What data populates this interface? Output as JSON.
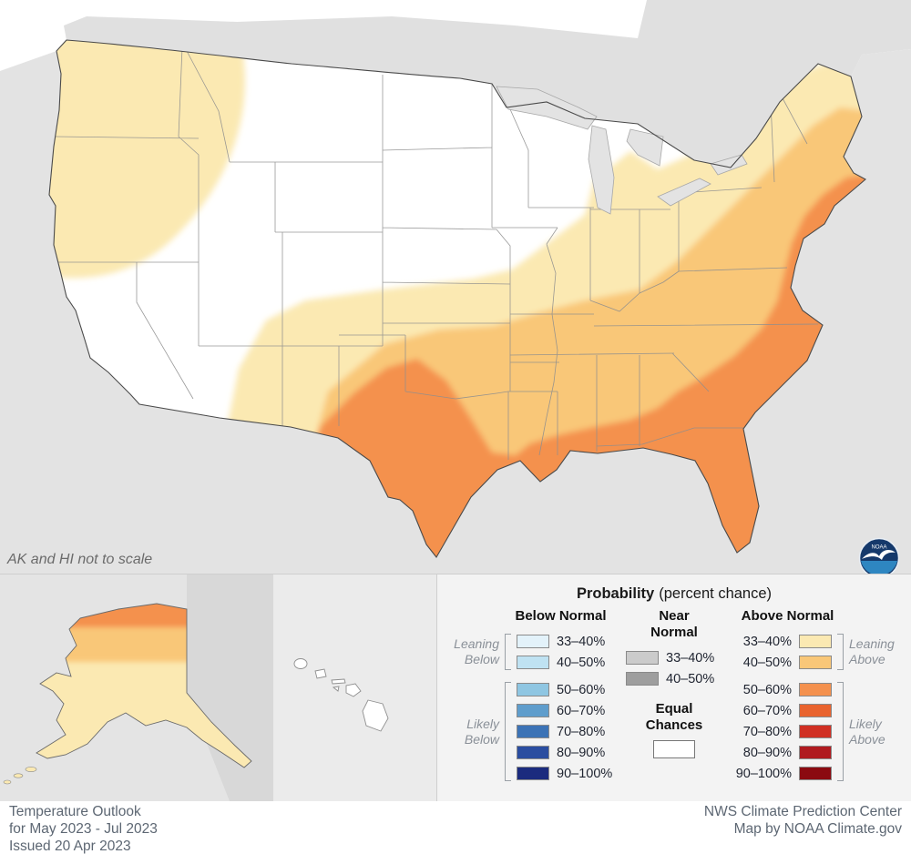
{
  "note": "AK and HI not to scale",
  "colors": {
    "above_33_40": "#FBE9B2",
    "above_40_50": "#F9C778",
    "above_50_60": "#F4914E",
    "above_60_70": "#E9632E",
    "above_70_80": "#D02F23",
    "above_80_90": "#B01A1F",
    "above_90_100": "#8B0A10",
    "below_33_40": "#E3F2FA",
    "below_40_50": "#BFE2F2",
    "below_50_60": "#8FC6E2",
    "below_60_70": "#5F9DCC",
    "below_70_80": "#3C73B6",
    "below_80_90": "#2A4DA0",
    "below_90_100": "#1B2B7E",
    "near_33_40": "#CBCBCB",
    "near_40_50": "#9E9E9E",
    "equal_chances": "#FFFFFF"
  },
  "legend": {
    "title": "Probability",
    "title_suffix": "(percent chance)",
    "below": {
      "header": "Below Normal",
      "leaning_label": "Leaning\nBelow",
      "likely_label": "Likely\nBelow",
      "leaning_rows": [
        {
          "label": "33–40%",
          "color": "#E3F2FA"
        },
        {
          "label": "40–50%",
          "color": "#BFE2F2"
        }
      ],
      "likely_rows": [
        {
          "label": "50–60%",
          "color": "#8FC6E2"
        },
        {
          "label": "60–70%",
          "color": "#5F9DCC"
        },
        {
          "label": "70–80%",
          "color": "#3C73B6"
        },
        {
          "label": "80–90%",
          "color": "#2A4DA0"
        },
        {
          "label": "90–100%",
          "color": "#1B2B7E"
        }
      ]
    },
    "near": {
      "header": "Near\nNormal",
      "rows": [
        {
          "label": "33–40%",
          "color": "#CBCBCB"
        },
        {
          "label": "40–50%",
          "color": "#9E9E9E"
        }
      ],
      "equal_header": "Equal\nChances",
      "equal_color": "#FFFFFF"
    },
    "above": {
      "header": "Above Normal",
      "leaning_label": "Leaning\nAbove",
      "likely_label": "Likely\nAbove",
      "leaning_rows": [
        {
          "label": "33–40%",
          "color": "#FBE9B2"
        },
        {
          "label": "40–50%",
          "color": "#F9C778"
        }
      ],
      "likely_rows": [
        {
          "label": "50–60%",
          "color": "#F4914E"
        },
        {
          "label": "60–70%",
          "color": "#E9632E"
        },
        {
          "label": "70–80%",
          "color": "#D02F23"
        },
        {
          "label": "80–90%",
          "color": "#B01A1F"
        },
        {
          "label": "90–100%",
          "color": "#8B0A10"
        }
      ]
    }
  },
  "footer": {
    "left": [
      "Temperature Outlook",
      "for May 2023 - Jul 2023",
      "Issued 20 Apr 2023"
    ],
    "right": [
      "NWS Climate Prediction Center",
      "Map by NOAA Climate.gov"
    ]
  },
  "logo": {
    "text": "NOAA"
  }
}
